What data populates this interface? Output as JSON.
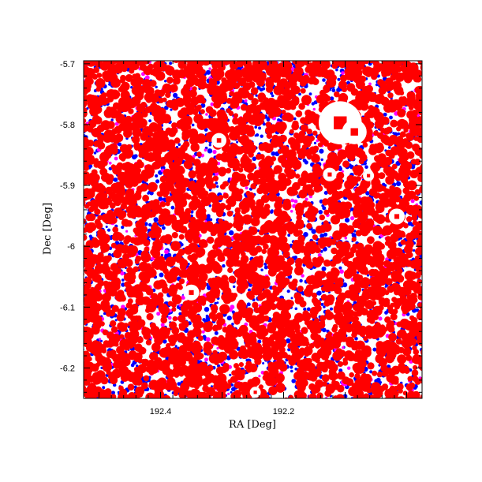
{
  "chart_data": {
    "type": "scatter",
    "title": "",
    "xlabel": "RA [Deg]",
    "ylabel": "Dec [Deg]",
    "xlim": [
      192.525,
      191.975
    ],
    "ylim": [
      -6.25,
      -5.695
    ],
    "x_ticks": [
      192.4,
      192.2
    ],
    "x_tick_labels": [
      "192.4",
      "192.2"
    ],
    "y_ticks": [
      -5.7,
      -5.8,
      -5.9,
      -6.0,
      -6.1,
      -6.2
    ],
    "y_tick_labels": [
      "-5.7",
      "-5.8",
      "-5.9",
      "-6",
      "-6.1",
      "-6.2"
    ],
    "grid": false,
    "legend": "none",
    "series": [
      {
        "color": "#0000ff"
      },
      {
        "color": "#ff00ff"
      },
      {
        "color": "#ff0000"
      }
    ],
    "background_color": "#ffffff",
    "masked_holes": [
      {
        "ra": 192.108,
        "dec": -5.797,
        "r": 0.035
      },
      {
        "ra": 192.085,
        "dec": -5.812,
        "r": 0.02
      },
      {
        "ra": 192.305,
        "dec": -5.826,
        "r": 0.012
      },
      {
        "ra": 192.125,
        "dec": -5.882,
        "r": 0.011
      },
      {
        "ra": 192.062,
        "dec": -5.884,
        "r": 0.009
      },
      {
        "ra": 192.016,
        "dec": -5.951,
        "r": 0.013
      },
      {
        "ra": 192.35,
        "dec": -6.076,
        "r": 0.013
      },
      {
        "ra": 192.246,
        "dec": -6.24,
        "r": 0.009
      }
    ]
  }
}
